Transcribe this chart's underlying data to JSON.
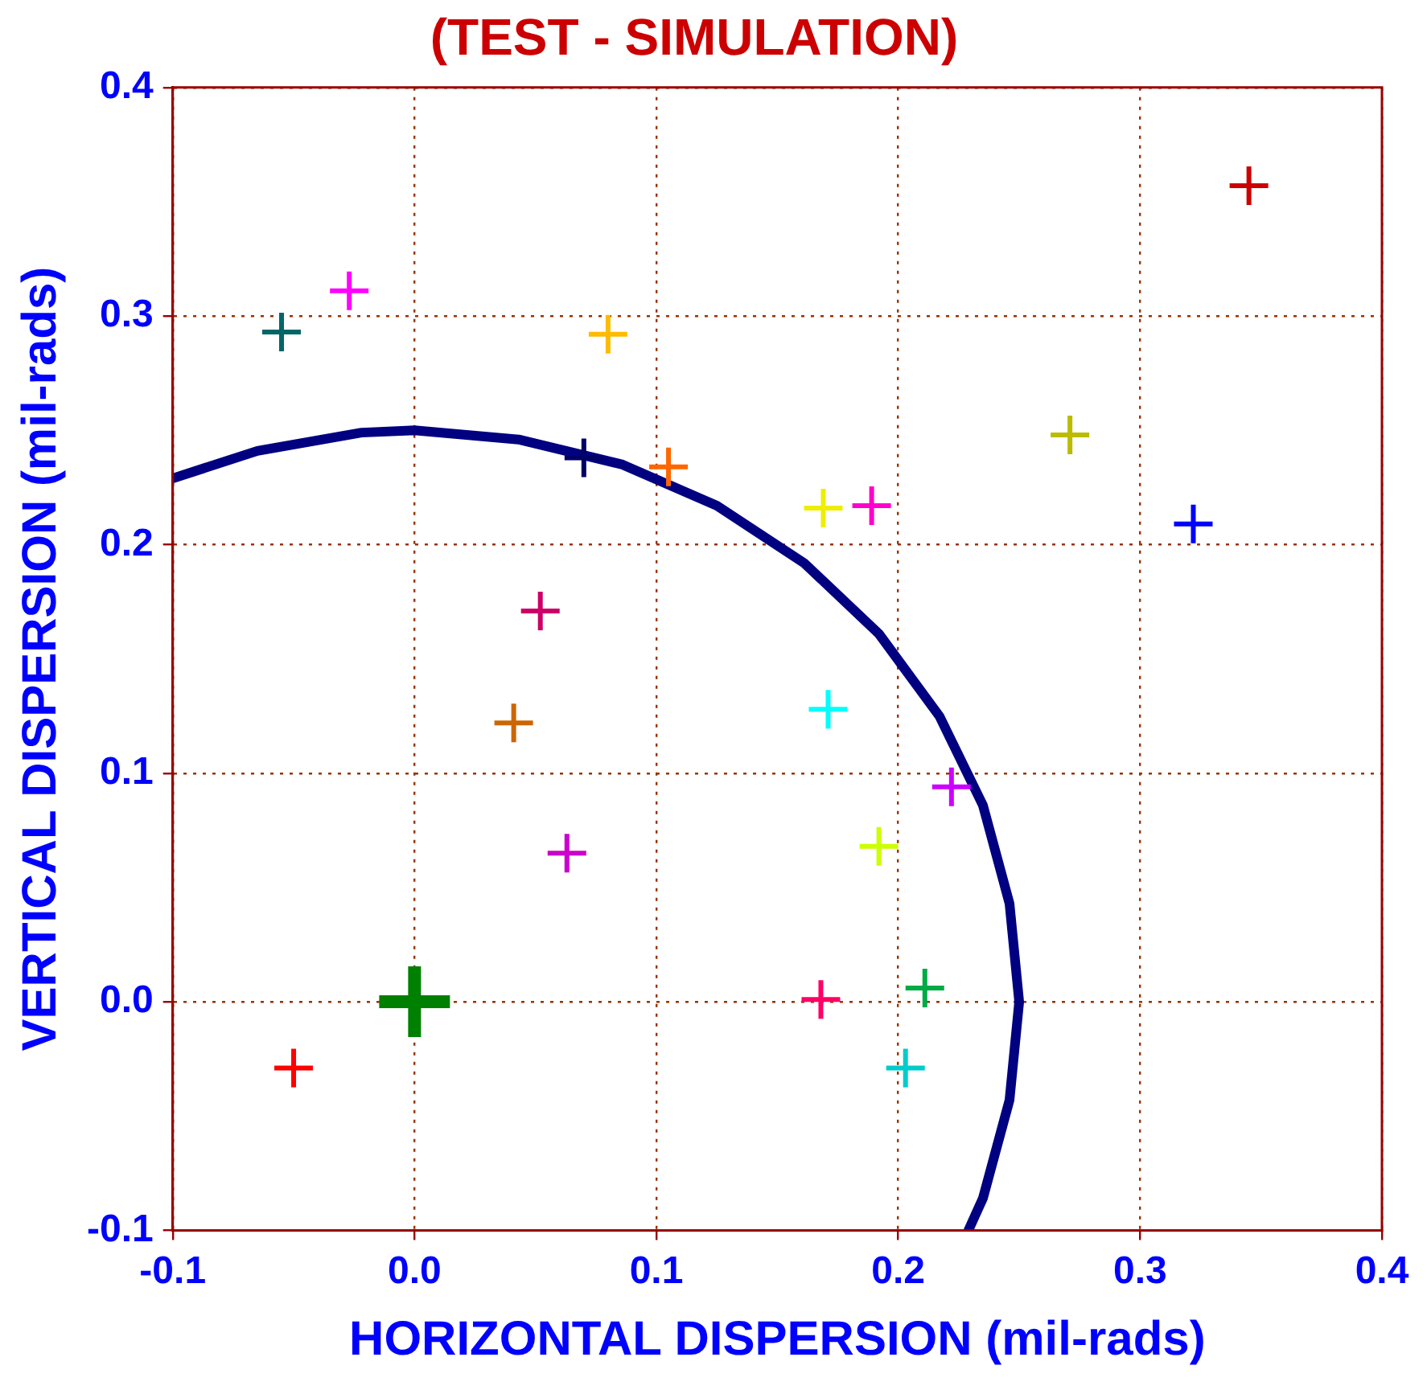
{
  "chart_data": {
    "type": "scatter",
    "title": "(TEST - SIMULATION)",
    "xlabel": "HORIZONTAL DISPERSION (mil-rads)",
    "ylabel": "VERTICAL DISPERSION (mil-rads)",
    "xlim": [
      -0.1,
      0.4
    ],
    "xticks": [
      {
        "value": -0.1,
        "label": "-0.1"
      },
      {
        "value": 0,
        "label": "0.0"
      },
      {
        "value": 0.1,
        "label": "0.1"
      },
      {
        "value": 0.2,
        "label": "0.2"
      },
      {
        "value": 0.3,
        "label": "0.3"
      },
      {
        "value": 0.4,
        "label": "0.4"
      }
    ],
    "ylim": [
      -0.1,
      0.4
    ],
    "yticks": [
      {
        "value": -0.1,
        "label": "-0.1"
      },
      {
        "value": 0,
        "label": "0.0"
      },
      {
        "value": 0.1,
        "label": "0.1"
      },
      {
        "value": 0.2,
        "label": "0.2"
      },
      {
        "value": 0.3,
        "label": "0.3"
      },
      {
        "value": 0.4,
        "label": "0.4"
      }
    ],
    "grid": true,
    "legend": false,
    "marker": "cross",
    "series": [
      {
        "type": "line",
        "color": "#000080",
        "marker": "none",
        "x": [
          -0.1,
          -0.065,
          -0.022,
          0,
          0.043,
          0.086,
          0.125,
          0.161,
          0.192,
          0.217,
          0.235,
          0.246,
          0.25,
          0.246,
          0.235,
          0.229
        ],
        "values": [
          0.229,
          0.241,
          0.249,
          0.25,
          0.246,
          0.235,
          0.217,
          0.192,
          0.161,
          0.125,
          0.086,
          0.043,
          0,
          -0.043,
          -0.086,
          -0.1
        ]
      },
      {
        "type": "scatter",
        "color": "#008000",
        "x": [
          0
        ],
        "values": [
          0
        ]
      },
      {
        "type": "scatter",
        "x": [
          0.345,
          -0.027,
          -0.055,
          0.08,
          0.07,
          0.105,
          0.169,
          0.189,
          0.271,
          0.322,
          0.052,
          0.041,
          0.171,
          0.222,
          0.063,
          0.192,
          0.168,
          0.211,
          0.203,
          -0.05
        ],
        "values": [
          0.357,
          0.311,
          0.293,
          0.292,
          0.238,
          0.234,
          0.216,
          0.217,
          0.248,
          0.209,
          0.171,
          0.122,
          0.128,
          0.094,
          0.065,
          0.068,
          0.001,
          0.006,
          -0.029,
          -0.029
        ],
        "colors": [
          "#cc0000",
          "#ff00ff",
          "#006666",
          "#ffbb00",
          "#000066",
          "#ff6600",
          "#eeee00",
          "#ff00cc",
          "#bbbb00",
          "#0000ff",
          "#cc0066",
          "#cc6600",
          "#00ffff",
          "#cc00ff",
          "#cc00cc",
          "#ccff00",
          "#ff0066",
          "#00aa44",
          "#00cccc",
          "#ff0000"
        ]
      }
    ]
  }
}
